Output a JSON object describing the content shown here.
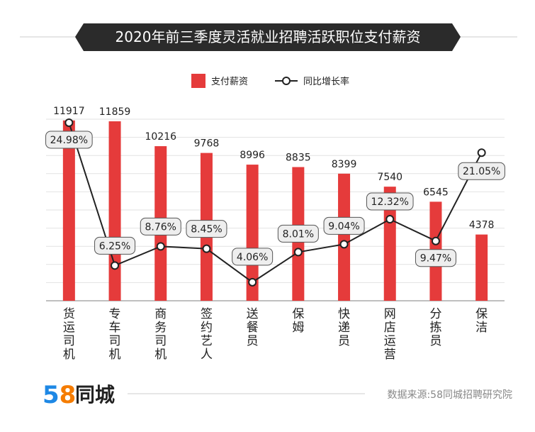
{
  "title": "2020年前三季度灵活就业招聘活跃职位支付薪资",
  "legend": {
    "bar_label": "支付薪资",
    "line_label": "同比增长率"
  },
  "footer": {
    "logo_number": "58",
    "logo_text": "同城",
    "source": "数据来源:58同城招聘研究院"
  },
  "colors": {
    "bar": "#e53b3b",
    "line": "#222222",
    "title_bg": "#2b2b2b",
    "grid": "#dddddd",
    "logo_5": "#1e88e5",
    "logo_8": "#f57c00"
  },
  "chart_data": {
    "type": "bar+line",
    "categories": [
      "货运司机",
      "专车司机",
      "商务司机",
      "签约艺人",
      "送餐员",
      "保姆",
      "快递员",
      "网店运营",
      "分拣员",
      "保洁"
    ],
    "series": [
      {
        "name": "支付薪资",
        "type": "bar",
        "values": [
          11917,
          11859,
          10216,
          9768,
          8996,
          8835,
          8399,
          7540,
          6545,
          4378
        ],
        "labels": [
          "11917",
          "11859",
          "10216",
          "9768",
          "8996",
          "8835",
          "8399",
          "7540",
          "6545",
          "4378"
        ]
      },
      {
        "name": "同比增长率",
        "type": "line",
        "values": [
          24.98,
          6.25,
          8.76,
          8.45,
          4.06,
          8.01,
          9.04,
          12.32,
          9.47,
          21.05
        ],
        "labels": [
          "24.98%",
          "6.25%",
          "8.76%",
          "8.45%",
          "4.06%",
          "8.01%",
          "9.04%",
          "12.32%",
          "9.47%",
          "21.05%"
        ]
      }
    ],
    "bar_ylim": [
      0,
      12000
    ],
    "line_ylim": [
      2,
      26
    ],
    "grid": true,
    "legend_position": "top-center"
  }
}
